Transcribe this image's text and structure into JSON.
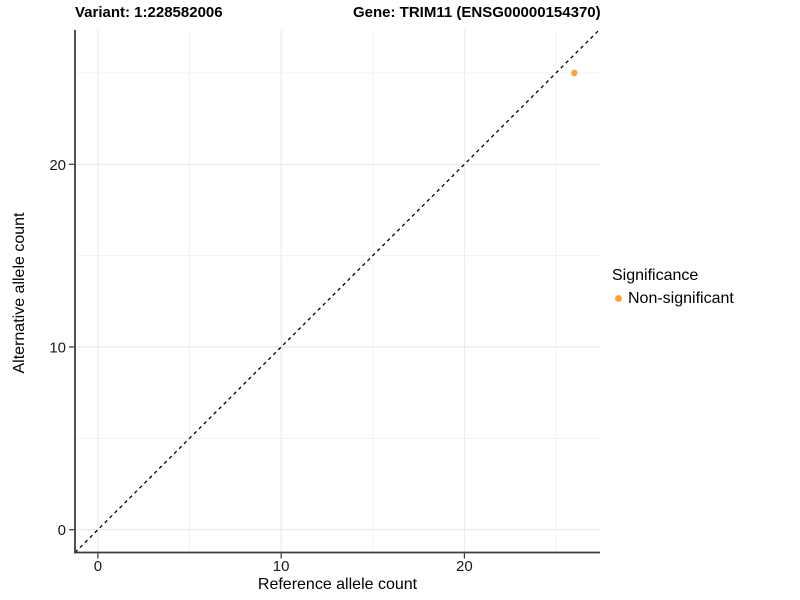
{
  "titles": {
    "left": "Variant: 1:228582006",
    "right": "Gene: TRIM11 (ENSG00000154370)"
  },
  "legend": {
    "title": "Significance"
  },
  "colors": {
    "point": "#FAA43C",
    "axis_line": "#3d3d3d",
    "tick_mark": "#333333",
    "grid_major": "#E7E7E7",
    "grid_minor": "#F2F2F2",
    "reference_line": "#000000",
    "background": "#FFFFFF"
  },
  "chart_data": {
    "type": "scatter",
    "title": "Variant: 1:228582006   Gene: TRIM11 (ENSG00000154370)",
    "xlabel": "Reference allele count",
    "ylabel": "Alternative allele count",
    "xlim": [
      -1.25,
      27.4
    ],
    "ylim": [
      -1.25,
      27.35
    ],
    "x_ticks": [
      0,
      10,
      20
    ],
    "y_ticks": [
      0,
      10,
      20
    ],
    "x_minor_ticks": [
      5,
      15,
      25
    ],
    "y_minor_ticks": [
      5,
      15,
      25
    ],
    "grid": true,
    "legend_position": "right",
    "series": [
      {
        "name": "Non-significant",
        "color": "#FAA43C",
        "points": [
          {
            "x": 26,
            "y": 25
          }
        ]
      }
    ],
    "reference_line": {
      "kind": "identity",
      "style": "dashed",
      "color": "#000000"
    }
  }
}
